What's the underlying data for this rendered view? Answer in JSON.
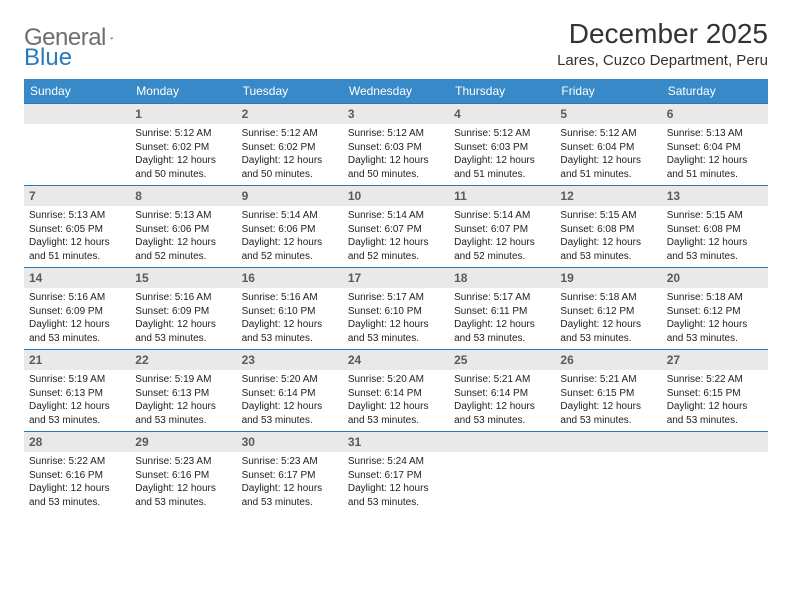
{
  "logo": {
    "text1": "General",
    "text2": "Blue"
  },
  "title": "December 2025",
  "location": "Lares, Cuzco Department, Peru",
  "columns": [
    "Sunday",
    "Monday",
    "Tuesday",
    "Wednesday",
    "Thursday",
    "Friday",
    "Saturday"
  ],
  "header_bg": "#3789c7",
  "daynum_bg": "#e9e9e9",
  "border_color": "#2a7ab9",
  "weeks": [
    [
      null,
      {
        "n": "1",
        "sr": "5:12 AM",
        "ss": "6:02 PM",
        "dl": "12 hours and 50 minutes."
      },
      {
        "n": "2",
        "sr": "5:12 AM",
        "ss": "6:02 PM",
        "dl": "12 hours and 50 minutes."
      },
      {
        "n": "3",
        "sr": "5:12 AM",
        "ss": "6:03 PM",
        "dl": "12 hours and 50 minutes."
      },
      {
        "n": "4",
        "sr": "5:12 AM",
        "ss": "6:03 PM",
        "dl": "12 hours and 51 minutes."
      },
      {
        "n": "5",
        "sr": "5:12 AM",
        "ss": "6:04 PM",
        "dl": "12 hours and 51 minutes."
      },
      {
        "n": "6",
        "sr": "5:13 AM",
        "ss": "6:04 PM",
        "dl": "12 hours and 51 minutes."
      }
    ],
    [
      {
        "n": "7",
        "sr": "5:13 AM",
        "ss": "6:05 PM",
        "dl": "12 hours and 51 minutes."
      },
      {
        "n": "8",
        "sr": "5:13 AM",
        "ss": "6:06 PM",
        "dl": "12 hours and 52 minutes."
      },
      {
        "n": "9",
        "sr": "5:14 AM",
        "ss": "6:06 PM",
        "dl": "12 hours and 52 minutes."
      },
      {
        "n": "10",
        "sr": "5:14 AM",
        "ss": "6:07 PM",
        "dl": "12 hours and 52 minutes."
      },
      {
        "n": "11",
        "sr": "5:14 AM",
        "ss": "6:07 PM",
        "dl": "12 hours and 52 minutes."
      },
      {
        "n": "12",
        "sr": "5:15 AM",
        "ss": "6:08 PM",
        "dl": "12 hours and 53 minutes."
      },
      {
        "n": "13",
        "sr": "5:15 AM",
        "ss": "6:08 PM",
        "dl": "12 hours and 53 minutes."
      }
    ],
    [
      {
        "n": "14",
        "sr": "5:16 AM",
        "ss": "6:09 PM",
        "dl": "12 hours and 53 minutes."
      },
      {
        "n": "15",
        "sr": "5:16 AM",
        "ss": "6:09 PM",
        "dl": "12 hours and 53 minutes."
      },
      {
        "n": "16",
        "sr": "5:16 AM",
        "ss": "6:10 PM",
        "dl": "12 hours and 53 minutes."
      },
      {
        "n": "17",
        "sr": "5:17 AM",
        "ss": "6:10 PM",
        "dl": "12 hours and 53 minutes."
      },
      {
        "n": "18",
        "sr": "5:17 AM",
        "ss": "6:11 PM",
        "dl": "12 hours and 53 minutes."
      },
      {
        "n": "19",
        "sr": "5:18 AM",
        "ss": "6:12 PM",
        "dl": "12 hours and 53 minutes."
      },
      {
        "n": "20",
        "sr": "5:18 AM",
        "ss": "6:12 PM",
        "dl": "12 hours and 53 minutes."
      }
    ],
    [
      {
        "n": "21",
        "sr": "5:19 AM",
        "ss": "6:13 PM",
        "dl": "12 hours and 53 minutes."
      },
      {
        "n": "22",
        "sr": "5:19 AM",
        "ss": "6:13 PM",
        "dl": "12 hours and 53 minutes."
      },
      {
        "n": "23",
        "sr": "5:20 AM",
        "ss": "6:14 PM",
        "dl": "12 hours and 53 minutes."
      },
      {
        "n": "24",
        "sr": "5:20 AM",
        "ss": "6:14 PM",
        "dl": "12 hours and 53 minutes."
      },
      {
        "n": "25",
        "sr": "5:21 AM",
        "ss": "6:14 PM",
        "dl": "12 hours and 53 minutes."
      },
      {
        "n": "26",
        "sr": "5:21 AM",
        "ss": "6:15 PM",
        "dl": "12 hours and 53 minutes."
      },
      {
        "n": "27",
        "sr": "5:22 AM",
        "ss": "6:15 PM",
        "dl": "12 hours and 53 minutes."
      }
    ],
    [
      {
        "n": "28",
        "sr": "5:22 AM",
        "ss": "6:16 PM",
        "dl": "12 hours and 53 minutes."
      },
      {
        "n": "29",
        "sr": "5:23 AM",
        "ss": "6:16 PM",
        "dl": "12 hours and 53 minutes."
      },
      {
        "n": "30",
        "sr": "5:23 AM",
        "ss": "6:17 PM",
        "dl": "12 hours and 53 minutes."
      },
      {
        "n": "31",
        "sr": "5:24 AM",
        "ss": "6:17 PM",
        "dl": "12 hours and 53 minutes."
      },
      null,
      null,
      null
    ]
  ],
  "labels": {
    "sunrise": "Sunrise:",
    "sunset": "Sunset:",
    "daylight": "Daylight:"
  }
}
